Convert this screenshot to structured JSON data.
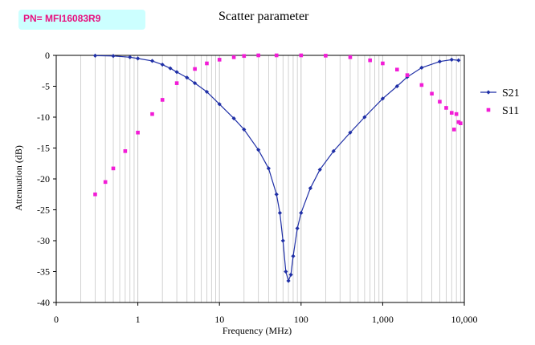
{
  "header": {
    "part_number": "PN= MFI16083R9"
  },
  "colors": {
    "s21": "#1f2fa6",
    "s11": "#f21cd6",
    "grid": "#c8c8c8",
    "axis": "#000000"
  },
  "chart_data": {
    "type": "line",
    "title": "Scatter parameter",
    "xlabel": "Frequency (MHz)",
    "ylabel": "Attenuation (dB)",
    "x_scale": "log",
    "xlim": [
      0.1,
      10000
    ],
    "ylim": [
      -40,
      0
    ],
    "x_ticks": [
      {
        "value": 0.1,
        "label": "0"
      },
      {
        "value": 1,
        "label": "1"
      },
      {
        "value": 10,
        "label": "10"
      },
      {
        "value": 100,
        "label": "100"
      },
      {
        "value": 1000,
        "label": "1,000"
      },
      {
        "value": 10000,
        "label": "10,000"
      }
    ],
    "y_ticks": [
      0,
      -5,
      -10,
      -15,
      -20,
      -25,
      -30,
      -35,
      -40
    ],
    "grid": true,
    "legend_position": "right",
    "series": [
      {
        "name": "S21",
        "marker": "diamond",
        "points": [
          [
            0.3,
            -0.05
          ],
          [
            0.5,
            -0.1
          ],
          [
            0.8,
            -0.3
          ],
          [
            1.0,
            -0.5
          ],
          [
            1.5,
            -0.9
          ],
          [
            2.0,
            -1.5
          ],
          [
            2.5,
            -2.1
          ],
          [
            3.0,
            -2.7
          ],
          [
            4.0,
            -3.6
          ],
          [
            5.0,
            -4.5
          ],
          [
            7.0,
            -5.9
          ],
          [
            10,
            -7.9
          ],
          [
            15,
            -10.2
          ],
          [
            20,
            -12.0
          ],
          [
            30,
            -15.3
          ],
          [
            40,
            -18.3
          ],
          [
            50,
            -22.5
          ],
          [
            55,
            -25.5
          ],
          [
            60,
            -30.0
          ],
          [
            65,
            -35.0
          ],
          [
            70,
            -36.5
          ],
          [
            75,
            -35.5
          ],
          [
            80,
            -32.5
          ],
          [
            90,
            -28.0
          ],
          [
            100,
            -25.5
          ],
          [
            130,
            -21.5
          ],
          [
            170,
            -18.5
          ],
          [
            250,
            -15.5
          ],
          [
            400,
            -12.5
          ],
          [
            600,
            -10.0
          ],
          [
            1000,
            -7.0
          ],
          [
            1500,
            -5.0
          ],
          [
            2000,
            -3.5
          ],
          [
            3000,
            -2.0
          ],
          [
            5000,
            -1.0
          ],
          [
            7000,
            -0.7
          ],
          [
            8500,
            -0.8
          ]
        ]
      },
      {
        "name": "S11",
        "marker": "square",
        "points": [
          [
            0.3,
            -22.5
          ],
          [
            0.4,
            -20.5
          ],
          [
            0.5,
            -18.3
          ],
          [
            0.7,
            -15.5
          ],
          [
            1.0,
            -12.5
          ],
          [
            1.5,
            -9.5
          ],
          [
            2.0,
            -7.2
          ],
          [
            3.0,
            -4.5
          ],
          [
            5.0,
            -2.2
          ],
          [
            7.0,
            -1.3
          ],
          [
            10,
            -0.7
          ],
          [
            15,
            -0.3
          ],
          [
            20,
            -0.1
          ],
          [
            30,
            0.0
          ],
          [
            50,
            0.0
          ],
          [
            100,
            0.0
          ],
          [
            200,
            -0.05
          ],
          [
            400,
            -0.3
          ],
          [
            700,
            -0.8
          ],
          [
            1000,
            -1.3
          ],
          [
            1500,
            -2.3
          ],
          [
            2000,
            -3.2
          ],
          [
            3000,
            -4.8
          ],
          [
            4000,
            -6.2
          ],
          [
            5000,
            -7.5
          ],
          [
            6000,
            -8.5
          ],
          [
            7000,
            -9.3
          ],
          [
            7500,
            -12.0
          ],
          [
            8000,
            -9.5
          ],
          [
            8500,
            -10.8
          ],
          [
            9000,
            -11.0
          ]
        ]
      }
    ]
  }
}
